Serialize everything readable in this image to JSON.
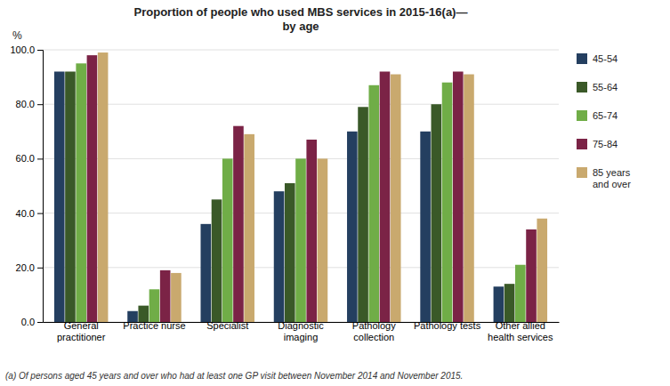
{
  "chart_data": {
    "type": "bar",
    "title": "Proportion of people who used MBS services in 2015-16(a)—\nby age",
    "y_label": "%",
    "annotations": [
      "(a) Of persons aged 45 years and over who had at least one GP visit between November 2014 and November 2015."
    ],
    "categories": [
      "General\npractitioner",
      "Practice nurse",
      "Specialist",
      "Diagnostic\nimaging",
      "Pathology\ncollection",
      "Pathology tests",
      "Other allied\nhealth services"
    ],
    "series": [
      {
        "name": "45-54",
        "color": "#243F60",
        "values": [
          92,
          4,
          36,
          48,
          70,
          70,
          13
        ]
      },
      {
        "name": "55-64",
        "color": "#3A5928",
        "values": [
          92,
          6,
          45,
          51,
          79,
          80,
          14
        ]
      },
      {
        "name": "65-74",
        "color": "#70AD47",
        "values": [
          95,
          12,
          60,
          60,
          87,
          88,
          21
        ]
      },
      {
        "name": "75-84",
        "color": "#7B2346",
        "values": [
          98,
          19,
          72,
          67,
          92,
          92,
          34
        ]
      },
      {
        "name": "85 years\nand over",
        "color": "#C9A96E",
        "values": [
          99,
          18,
          69,
          60,
          91,
          91,
          38
        ]
      }
    ],
    "ylim": [
      0,
      100
    ],
    "yticks": [
      {
        "value": 0,
        "label": "0.0"
      },
      {
        "value": 20,
        "label": "20.0"
      },
      {
        "value": 40,
        "label": "40.0"
      },
      {
        "value": 60,
        "label": "60.0"
      },
      {
        "value": 80,
        "label": "80.0"
      },
      {
        "value": 100,
        "label": "100.0"
      }
    ],
    "grid": true,
    "legend": "right"
  }
}
